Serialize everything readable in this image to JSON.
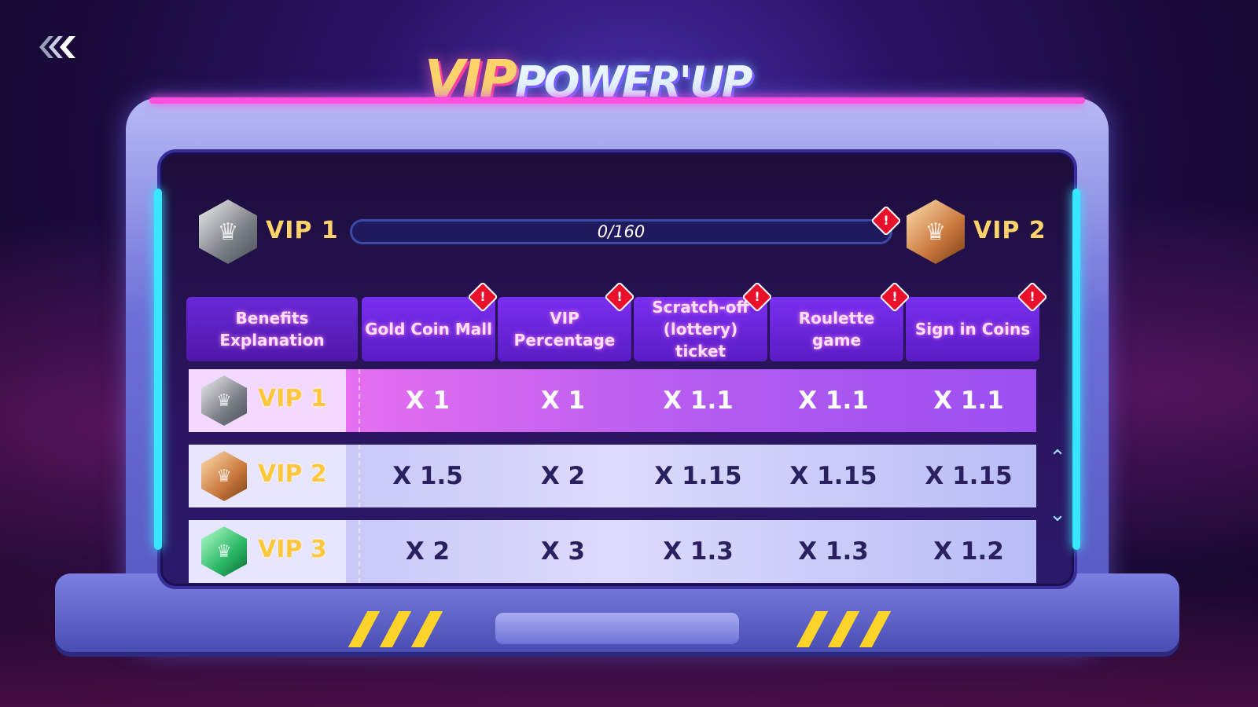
{
  "title": {
    "vip": "VIP",
    "power_up": "POWER'UP"
  },
  "navigation": {
    "back_icon": "double-chevron-left-icon"
  },
  "progress": {
    "current_level": "VIP 1",
    "next_level": "VIP 2",
    "value": "0/160",
    "fraction": 0
  },
  "table": {
    "headers": [
      "Benefits Explanation",
      "Gold Coin Mall",
      "VIP Percentage",
      "Scratch-off (lottery) ticket",
      "Roulette game",
      "Sign in Coins"
    ],
    "rows": [
      {
        "level": "VIP 1",
        "badge": "silver",
        "values": [
          "X 1",
          "X 1",
          "X 1.1",
          "X 1.1",
          "X 1.1"
        ]
      },
      {
        "level": "VIP 2",
        "badge": "bronze",
        "values": [
          "X 1.5",
          "X 2",
          "X 1.15",
          "X 1.15",
          "X 1.15"
        ]
      },
      {
        "level": "VIP 3",
        "badge": "green",
        "values": [
          "X 2",
          "X 3",
          "X 1.3",
          "X 1.3",
          "X 1.2"
        ]
      }
    ]
  },
  "icons": {
    "alert": "!",
    "crown": "♛",
    "scroll_up": "⌃",
    "scroll_down": "⌄"
  },
  "colors": {
    "accent_gold": "#ffd36a",
    "header_purple": "#7a2ff0",
    "alert_red": "#e8102a"
  }
}
